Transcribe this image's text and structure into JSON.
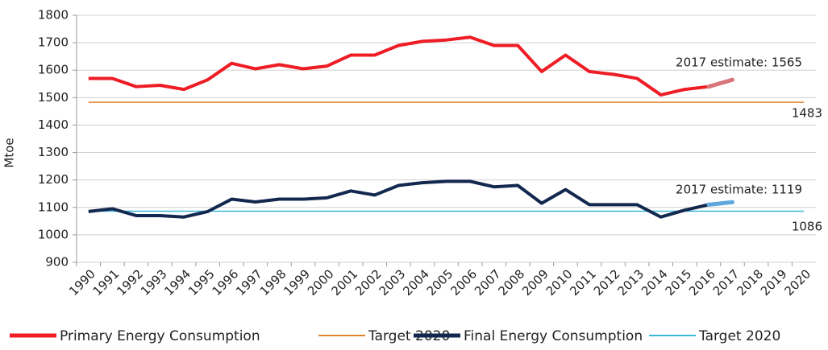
{
  "chart_data": {
    "type": "line",
    "y_label": "Mtoe",
    "categories": [
      "1990",
      "1991",
      "1992",
      "1993",
      "1994",
      "1995",
      "1996",
      "1997",
      "1998",
      "1999",
      "2000",
      "2001",
      "2002",
      "2003",
      "2004",
      "2005",
      "2006",
      "2007",
      "2008",
      "2009",
      "2010",
      "2011",
      "2012",
      "2013",
      "2014",
      "2015",
      "2016",
      "2017",
      "2018",
      "2019",
      "2020"
    ],
    "series": [
      {
        "name": "Primary Energy Consumption",
        "color": "#ee1c25",
        "width": 4,
        "values": [
          1570,
          1570,
          1540,
          1545,
          1530,
          1565,
          1625,
          1605,
          1620,
          1605,
          1615,
          1655,
          1655,
          1690,
          1705,
          1710,
          1720,
          1690,
          1690,
          1595,
          1655,
          1595,
          1585,
          1570,
          1510,
          1530,
          1540,
          null,
          null,
          null,
          null
        ]
      },
      {
        "name": "Target 2020",
        "color": "#e2842d",
        "width": 1.5,
        "values": [
          1483,
          1483,
          1483,
          1483,
          1483,
          1483,
          1483,
          1483,
          1483,
          1483,
          1483,
          1483,
          1483,
          1483,
          1483,
          1483,
          1483,
          1483,
          1483,
          1483,
          1483,
          1483,
          1483,
          1483,
          1483,
          1483,
          1483,
          1483,
          1483,
          1483,
          1483
        ]
      },
      {
        "name": "Final Energy Consumption",
        "color": "#13284f",
        "width": 4,
        "values": [
          1085,
          1095,
          1070,
          1070,
          1065,
          1085,
          1130,
          1120,
          1130,
          1130,
          1135,
          1160,
          1145,
          1180,
          1190,
          1195,
          1195,
          1175,
          1180,
          1115,
          1165,
          1110,
          1110,
          1110,
          1065,
          1090,
          1110,
          null,
          null,
          null,
          null
        ]
      },
      {
        "name": "Target 2020",
        "color": "#3bb8d8",
        "width": 1.5,
        "values": [
          1086,
          1086,
          1086,
          1086,
          1086,
          1086,
          1086,
          1086,
          1086,
          1086,
          1086,
          1086,
          1086,
          1086,
          1086,
          1086,
          1086,
          1086,
          1086,
          1086,
          1086,
          1086,
          1086,
          1086,
          1086,
          1086,
          1086,
          1086,
          1086,
          1086,
          1086
        ]
      }
    ],
    "trend_lines": [
      {
        "color": "#b23a3a",
        "dashed": true,
        "values": [
          null,
          null,
          null,
          null,
          null,
          null,
          null,
          null,
          null,
          null,
          null,
          null,
          null,
          null,
          null,
          1710,
          null,
          null,
          null,
          null,
          null,
          null,
          null,
          null,
          null,
          null,
          null,
          null,
          null,
          null,
          1483
        ]
      },
      {
        "color": "#d9757a",
        "dashed": false,
        "values": [
          null,
          null,
          null,
          null,
          null,
          null,
          null,
          null,
          null,
          null,
          null,
          null,
          null,
          null,
          null,
          null,
          null,
          null,
          null,
          null,
          null,
          null,
          null,
          null,
          null,
          null,
          1540,
          1565,
          null,
          null,
          null
        ]
      },
      {
        "color": "#2e7fc6",
        "dashed": true,
        "values": [
          null,
          null,
          null,
          null,
          null,
          null,
          null,
          null,
          null,
          null,
          null,
          null,
          null,
          null,
          null,
          null,
          1190,
          null,
          null,
          null,
          null,
          null,
          null,
          null,
          null,
          null,
          null,
          null,
          null,
          null,
          1086
        ]
      },
      {
        "color": "#5fa8de",
        "dashed": false,
        "values": [
          null,
          null,
          null,
          null,
          null,
          null,
          null,
          null,
          null,
          null,
          null,
          null,
          null,
          null,
          null,
          null,
          null,
          null,
          null,
          null,
          null,
          null,
          null,
          null,
          null,
          null,
          1110,
          1119,
          null,
          null,
          null
        ]
      }
    ],
    "annotations": [
      "2017 estimate: 1565",
      "1483",
      "2017 estimate: 1119",
      "1086"
    ],
    "ylim": [
      900,
      1800
    ],
    "yticks": [
      900,
      1000,
      1100,
      1200,
      1300,
      1400,
      1500,
      1600,
      1700,
      1800
    ],
    "grid": true
  }
}
